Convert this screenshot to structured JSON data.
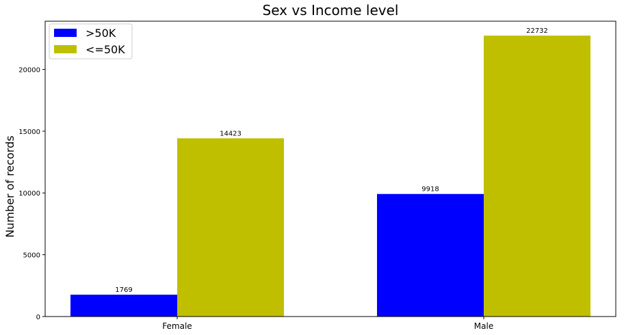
{
  "chart_data": {
    "type": "bar",
    "title": "Sex vs Income level",
    "xlabel": "",
    "ylabel": "Number of records",
    "categories": [
      "Female",
      "Male"
    ],
    "series": [
      {
        "name": ">50K",
        "values": [
          1769,
          9918
        ],
        "color": "#0000ff"
      },
      {
        "name": "<=50K",
        "values": [
          14423,
          22732
        ],
        "color": "#bfbf00"
      }
    ],
    "ylim": [
      0,
      23900
    ],
    "yticks": [
      0,
      5000,
      10000,
      15000,
      20000
    ],
    "legend": "top-left",
    "grid": false,
    "data_labels": true
  }
}
